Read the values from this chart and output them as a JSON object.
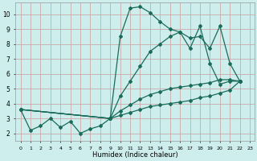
{
  "xlabel": "Humidex (Indice chaleur)",
  "bg_color": "#ceeeed",
  "grid_color": "#c8aaaa",
  "line_color": "#1a6b5a",
  "xlim": [
    -0.5,
    23.5
  ],
  "ylim": [
    1.5,
    10.8
  ],
  "xticks": [
    0,
    1,
    2,
    3,
    4,
    5,
    6,
    7,
    8,
    9,
    10,
    11,
    12,
    13,
    14,
    15,
    16,
    17,
    18,
    19,
    20,
    21,
    22,
    23
  ],
  "yticks": [
    2,
    3,
    4,
    5,
    6,
    7,
    8,
    9,
    10
  ],
  "series": [
    {
      "x": [
        0,
        1,
        2,
        3,
        4,
        5,
        6,
        7,
        8,
        9,
        10,
        11,
        12,
        13,
        14,
        15,
        16,
        17,
        18,
        19,
        20,
        21,
        22
      ],
      "y": [
        3.6,
        2.2,
        2.5,
        3.0,
        2.4,
        2.8,
        2.0,
        2.3,
        2.5,
        3.0,
        8.5,
        10.4,
        10.5,
        10.1,
        9.5,
        9.0,
        8.8,
        7.7,
        9.2,
        6.7,
        5.3,
        5.5,
        5.5
      ]
    },
    {
      "x": [
        0,
        9,
        10,
        11,
        12,
        13,
        14,
        15,
        16,
        17,
        18,
        19,
        20,
        21,
        22
      ],
      "y": [
        3.6,
        3.0,
        4.5,
        5.5,
        6.5,
        7.5,
        8.0,
        8.5,
        8.8,
        8.4,
        8.5,
        7.7,
        9.2,
        6.7,
        5.5
      ]
    },
    {
      "x": [
        0,
        9,
        10,
        11,
        12,
        13,
        14,
        15,
        16,
        17,
        18,
        19,
        20,
        21,
        22
      ],
      "y": [
        3.6,
        3.0,
        3.5,
        3.9,
        4.3,
        4.6,
        4.8,
        5.0,
        5.1,
        5.2,
        5.3,
        5.4,
        5.6,
        5.6,
        5.5
      ]
    },
    {
      "x": [
        0,
        9,
        10,
        11,
        12,
        13,
        14,
        15,
        16,
        17,
        18,
        19,
        20,
        21,
        22
      ],
      "y": [
        3.6,
        3.0,
        3.2,
        3.4,
        3.6,
        3.8,
        3.9,
        4.0,
        4.1,
        4.2,
        4.4,
        4.5,
        4.7,
        4.9,
        5.5
      ]
    }
  ]
}
